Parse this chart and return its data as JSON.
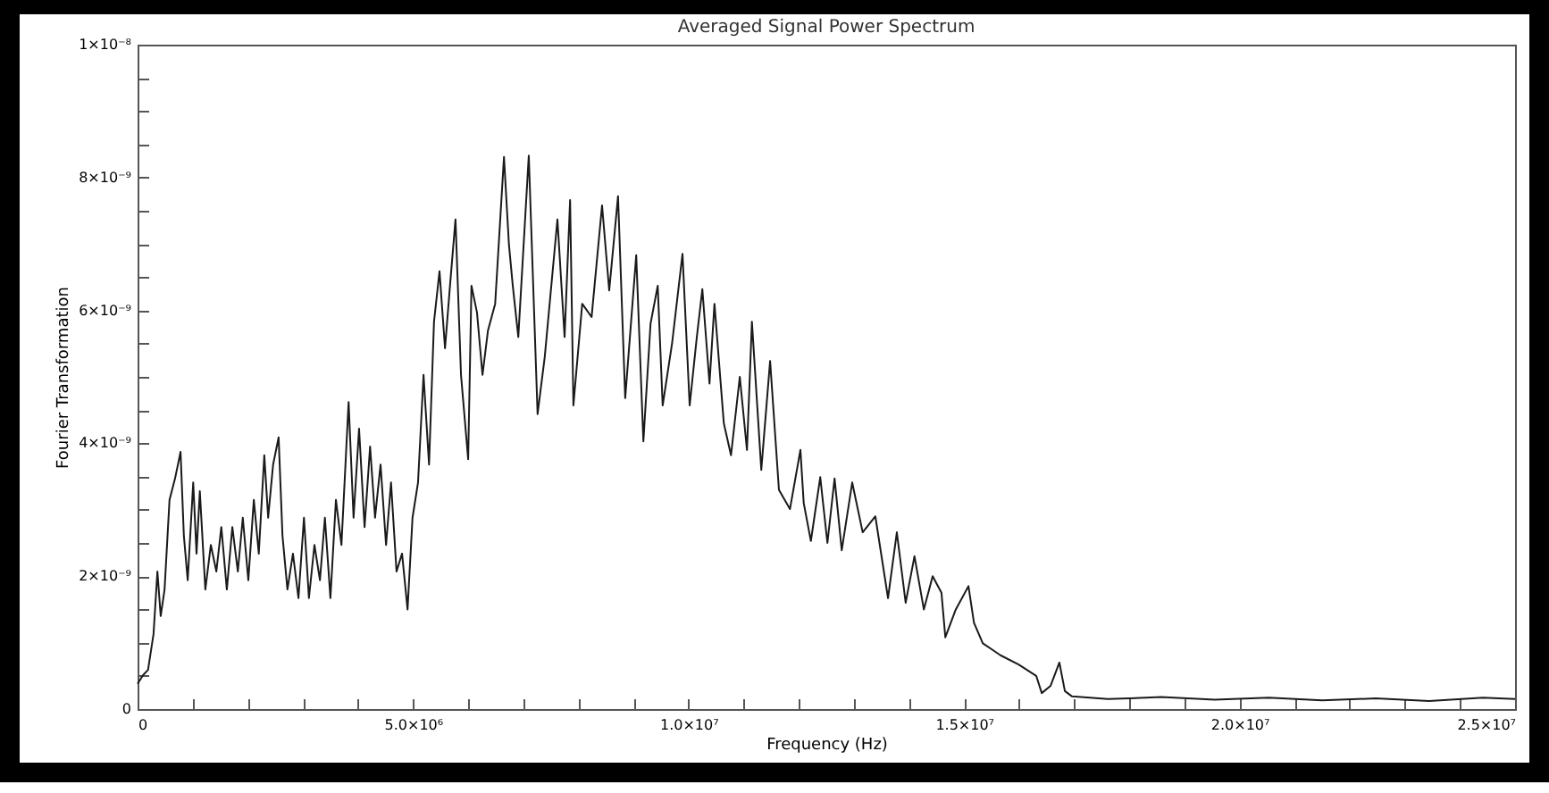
{
  "chart_data": {
    "type": "line",
    "title": "Averaged Signal Power Spectrum",
    "xlabel": "Frequency (Hz)",
    "ylabel": "Fourier Transformation",
    "x": [
      0,
      100000,
      190000,
      290000,
      360000,
      420000,
      490000,
      580000,
      680000,
      780000,
      840000,
      910000,
      1010000,
      1070000,
      1130000,
      1230000,
      1330000,
      1430000,
      1520000,
      1620000,
      1720000,
      1820000,
      1910000,
      2010000,
      2110000,
      2200000,
      2300000,
      2370000,
      2460000,
      2560000,
      2630000,
      2720000,
      2820000,
      2920000,
      3020000,
      3110000,
      3210000,
      3310000,
      3400000,
      3500000,
      3600000,
      3700000,
      3830000,
      3920000,
      4020000,
      4120000,
      4220000,
      4310000,
      4410000,
      4510000,
      4600000,
      4700000,
      4800000,
      4900000,
      4990000,
      5090000,
      5190000,
      5290000,
      5380000,
      5480000,
      5580000,
      5670000,
      5770000,
      5870000,
      6000000,
      6060000,
      6160000,
      6260000,
      6360000,
      6490000,
      6650000,
      6740000,
      6810000,
      6910000,
      7100000,
      7260000,
      7390000,
      7620000,
      7750000,
      7850000,
      7910000,
      8070000,
      8240000,
      8430000,
      8560000,
      8720000,
      8850000,
      9050000,
      9180000,
      9310000,
      9440000,
      9530000,
      9700000,
      9890000,
      10020000,
      10150000,
      10250000,
      10380000,
      10470000,
      10640000,
      10770000,
      10930000,
      11060000,
      11150000,
      11320000,
      11480000,
      11640000,
      11840000,
      12030000,
      12090000,
      12220000,
      12390000,
      12520000,
      12650000,
      12780000,
      12970000,
      13160000,
      13390000,
      13620000,
      13780000,
      13940000,
      14100000,
      14270000,
      14430000,
      14590000,
      14660000,
      14850000,
      15080000,
      15180000,
      15340000,
      15500000,
      15660000,
      15990000,
      16310000,
      16410000,
      16570000,
      16730000,
      16830000,
      16960000,
      17610000,
      18580000,
      19550000,
      20530000,
      21500000,
      22470000,
      23440000,
      24420000,
      25000000
    ],
    "series": [
      {
        "color": "#1a1a1a",
        "values": [
          3.8e-10,
          5.1e-10,
          5.9e-10,
          1.13e-09,
          2.07e-09,
          1.4e-09,
          1.8e-09,
          3.15e-09,
          3.47e-09,
          3.87e-09,
          2.61e-09,
          1.94e-09,
          3.41e-09,
          2.34e-09,
          3.28e-09,
          1.8e-09,
          2.47e-09,
          2.07e-09,
          2.74e-09,
          1.8e-09,
          2.74e-09,
          2.07e-09,
          2.88e-09,
          1.94e-09,
          3.15e-09,
          2.34e-09,
          3.82e-09,
          2.88e-09,
          3.68e-09,
          4.09e-09,
          2.61e-09,
          1.8e-09,
          2.34e-09,
          1.67e-09,
          2.88e-09,
          1.67e-09,
          2.47e-09,
          1.94e-09,
          2.88e-09,
          1.67e-09,
          3.15e-09,
          2.47e-09,
          4.62e-09,
          2.88e-09,
          4.22e-09,
          2.74e-09,
          3.95e-09,
          2.88e-09,
          3.68e-09,
          2.47e-09,
          3.41e-09,
          2.07e-09,
          2.34e-09,
          1.5e-09,
          2.88e-09,
          3.41e-09,
          5.03e-09,
          3.68e-09,
          5.83e-09,
          6.59e-09,
          5.43e-09,
          6.37e-09,
          7.37e-09,
          5.03e-09,
          3.76e-09,
          6.37e-09,
          5.97e-09,
          5.03e-09,
          5.7e-09,
          6.1e-09,
          8.31e-09,
          6.99e-09,
          6.37e-09,
          5.6e-09,
          8.33e-09,
          4.44e-09,
          5.3e-09,
          7.37e-09,
          5.6e-09,
          7.66e-09,
          4.57e-09,
          6.1e-09,
          5.9e-09,
          7.58e-09,
          6.3e-09,
          7.72e-09,
          4.68e-09,
          6.83e-09,
          4.03e-09,
          5.8e-09,
          6.37e-09,
          4.57e-09,
          5.5e-09,
          6.85e-09,
          4.57e-09,
          5.6e-09,
          6.32e-09,
          4.9e-09,
          6.1e-09,
          4.3e-09,
          3.82e-09,
          5e-09,
          3.9e-09,
          5.83e-09,
          3.6e-09,
          5.24e-09,
          3.3e-09,
          3.01e-09,
          3.9e-09,
          3.1e-09,
          2.53e-09,
          3.49e-09,
          2.5e-09,
          3.47e-09,
          2.39e-09,
          3.41e-09,
          2.66e-09,
          2.9e-09,
          1.67e-09,
          2.66e-09,
          1.6e-09,
          2.3e-09,
          1.5e-09,
          2e-09,
          1.75e-09,
          1.08e-09,
          1.5e-09,
          1.85e-09,
          1.3e-09,
          9.9e-10,
          9e-10,
          8.1e-10,
          6.7e-10,
          5e-10,
          2.4e-10,
          3.5e-10,
          7e-10,
          2.7e-10,
          1.9e-10,
          1.5e-10,
          1.8e-10,
          1.4e-10,
          1.7e-10,
          1.3e-10,
          1.6e-10,
          1.2e-10,
          1.7e-10,
          1.5e-10
        ]
      }
    ],
    "xlim": [
      0,
      25000000
    ],
    "xticks": [
      0,
      {
        "value": 1000000,
        "label": null
      },
      {
        "value": 2000000,
        "label": null
      },
      {
        "value": 3000000,
        "label": null
      },
      {
        "value": 4000000,
        "label": null
      },
      {
        "value": 5000000,
        "label": "5.0×10⁶"
      },
      {
        "value": 6000000,
        "label": null
      },
      {
        "value": 7000000,
        "label": null
      },
      {
        "value": 8000000,
        "label": null
      },
      {
        "value": 9000000,
        "label": null
      },
      {
        "value": 10000000,
        "label": "1.0×10⁷"
      },
      {
        "value": 11000000,
        "label": null
      },
      {
        "value": 12000000,
        "label": null
      },
      {
        "value": 13000000,
        "label": null
      },
      {
        "value": 14000000,
        "label": null
      },
      {
        "value": 15000000,
        "label": "1.5×10⁷"
      },
      {
        "value": 16000000,
        "label": null
      },
      {
        "value": 17000000,
        "label": null
      },
      {
        "value": 18000000,
        "label": null
      },
      {
        "value": 19000000,
        "label": null
      },
      {
        "value": 20000000,
        "label": "2.0×10⁷"
      },
      {
        "value": 21000000,
        "label": null
      },
      {
        "value": 22000000,
        "label": null
      },
      {
        "value": 23000000,
        "label": null
      },
      {
        "value": 24000000,
        "label": null
      },
      {
        "value": 25000000,
        "label": "2.5×10⁷"
      }
    ],
    "ylim": [
      0,
      1e-08
    ],
    "yticks": [
      0,
      {
        "value": 5e-10,
        "label": null
      },
      {
        "value": 1e-09,
        "label": null
      },
      {
        "value": 1.5e-09,
        "label": null
      },
      {
        "value": 2e-09,
        "label": "2×10⁻⁹"
      },
      {
        "value": 2.5e-09,
        "label": null
      },
      {
        "value": 3e-09,
        "label": null
      },
      {
        "value": 3.5e-09,
        "label": null
      },
      {
        "value": 4e-09,
        "label": "4×10⁻⁹"
      },
      {
        "value": 4.5e-09,
        "label": null
      },
      {
        "value": 5e-09,
        "label": null
      },
      {
        "value": 5.5e-09,
        "label": null
      },
      {
        "value": 6e-09,
        "label": "6×10⁻⁹"
      },
      {
        "value": 6.5e-09,
        "label": null
      },
      {
        "value": 7e-09,
        "label": null
      },
      {
        "value": 7.5e-09,
        "label": null
      },
      {
        "value": 8e-09,
        "label": "8×10⁻⁹"
      },
      {
        "value": 8.5e-09,
        "label": null
      },
      {
        "value": 9e-09,
        "label": null
      },
      {
        "value": 9.5e-09,
        "label": null
      },
      {
        "value": 1e-08,
        "label": "1×10⁻⁸"
      }
    ],
    "grid": false,
    "marker": "none",
    "line_style": "solid"
  }
}
